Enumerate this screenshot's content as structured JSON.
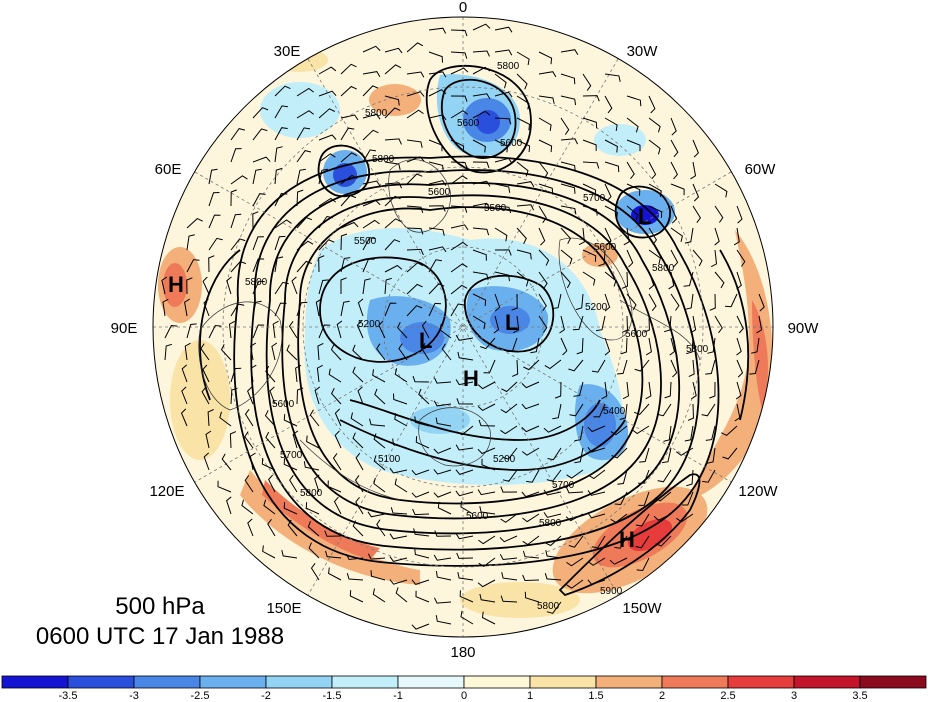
{
  "title": {
    "level": "500 hPa",
    "time": "0600 UTC 17 Jan 1988"
  },
  "longitude_labels": [
    {
      "id": "lon-0",
      "text": "0"
    },
    {
      "id": "lon-30w",
      "text": "30W"
    },
    {
      "id": "lon-60w",
      "text": "60W"
    },
    {
      "id": "lon-90w",
      "text": "90W"
    },
    {
      "id": "lon-120w",
      "text": "120W"
    },
    {
      "id": "lon-150w",
      "text": "150W"
    },
    {
      "id": "lon-180",
      "text": "180"
    },
    {
      "id": "lon-150e",
      "text": "150E"
    },
    {
      "id": "lon-120e",
      "text": "120E"
    },
    {
      "id": "lon-90e",
      "text": "90E"
    },
    {
      "id": "lon-60e",
      "text": "60E"
    },
    {
      "id": "lon-30e",
      "text": "30E"
    }
  ],
  "pressure_centers": [
    {
      "id": "h-90e",
      "text": "H"
    },
    {
      "id": "l-center-left",
      "text": "L"
    },
    {
      "id": "l-center-right",
      "text": "L"
    },
    {
      "id": "h-center",
      "text": "H"
    },
    {
      "id": "l-60w",
      "text": "L"
    },
    {
      "id": "h-150w",
      "text": "H"
    }
  ],
  "contour_labels": [
    "5800",
    "5800",
    "5600",
    "5800",
    "5600",
    "5500",
    "5700",
    "5500",
    "5600",
    "5800",
    "5800",
    "5200",
    "5600",
    "5600",
    "5800",
    "5100",
    "5200",
    "5700",
    "5600",
    "5800",
    "5900",
    "5200",
    "5700",
    "5400",
    "5800",
    "5600",
    "5800"
  ],
  "colorbar": {
    "ticks": [
      "-3.5",
      "-3",
      "-2.5",
      "-2",
      "-1.5",
      "-1",
      "0",
      "1",
      "1.5",
      "2",
      "2.5",
      "3",
      "3.5"
    ],
    "colors": [
      "#1414d2",
      "#2a4fdc",
      "#4a86e6",
      "#6ab0ee",
      "#93d3f4",
      "#c2eef9",
      "#e6f8fb",
      "#fdf8d8",
      "#fae3a6",
      "#f4b07a",
      "#ee7a5a",
      "#e63c3c",
      "#c4142a",
      "#8c0a1e"
    ]
  }
}
